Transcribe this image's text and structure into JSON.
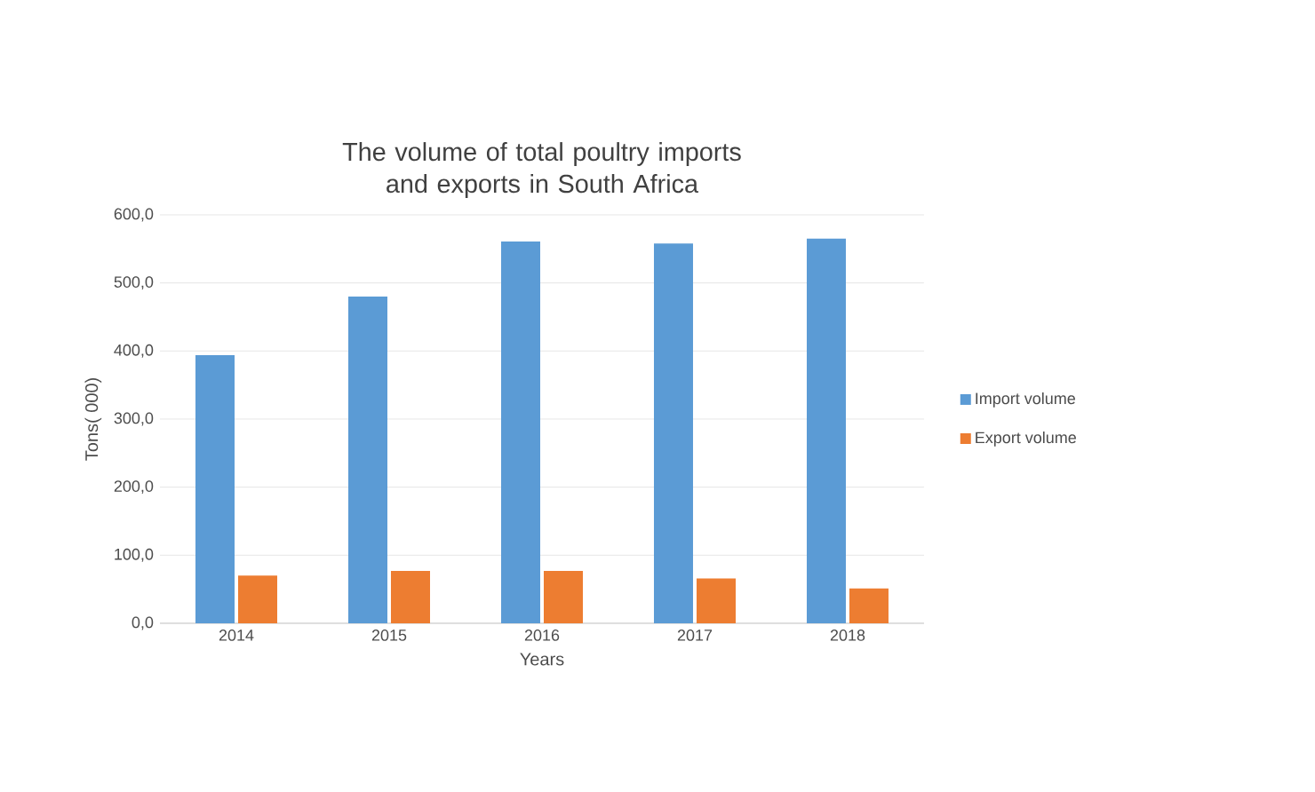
{
  "chart_data": {
    "type": "bar",
    "title": "The volume of total poultry imports and exports in South Africa",
    "xlabel": "Years",
    "ylabel": "Tons( 000)",
    "categories": [
      "2014",
      "2015",
      "2016",
      "2017",
      "2018"
    ],
    "series": [
      {
        "name": "Import volume",
        "color": "#5b9bd5",
        "values": [
          394,
          480,
          561,
          558,
          565
        ]
      },
      {
        "name": "Export volume",
        "color": "#ed7d31",
        "values": [
          70,
          77,
          77,
          66,
          51
        ]
      }
    ],
    "ylim": [
      0,
      600
    ],
    "yticks": [
      {
        "value": 0,
        "label": "0,0"
      },
      {
        "value": 100,
        "label": "100,0"
      },
      {
        "value": 200,
        "label": "200,0"
      },
      {
        "value": 300,
        "label": "300,0"
      },
      {
        "value": 400,
        "label": "400,0"
      },
      {
        "value": 500,
        "label": "500,0"
      },
      {
        "value": 600,
        "label": "600,0"
      }
    ],
    "grid": "y",
    "legend": "right"
  }
}
